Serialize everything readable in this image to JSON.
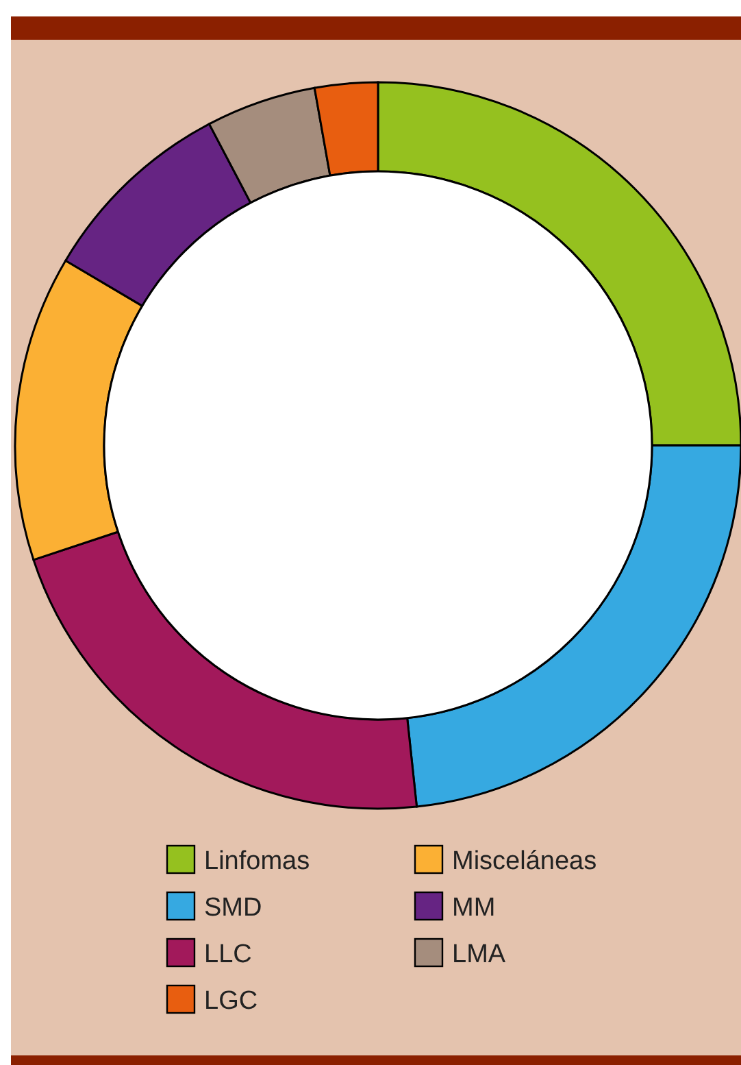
{
  "chart_data": {
    "type": "donut",
    "categories": [
      "Linfomas",
      "SMD",
      "LLC",
      "Misceláneas",
      "MM",
      "LMA",
      "LGC"
    ],
    "values": [
      25,
      23.3,
      21.6,
      13.6,
      8.8,
      4.9,
      2.8
    ],
    "colors": [
      "#95c11f",
      "#36a9e1",
      "#a2195b",
      "#fbb034",
      "#662483",
      "#a58d7d",
      "#e85e10"
    ],
    "legend": "bottom"
  }
}
